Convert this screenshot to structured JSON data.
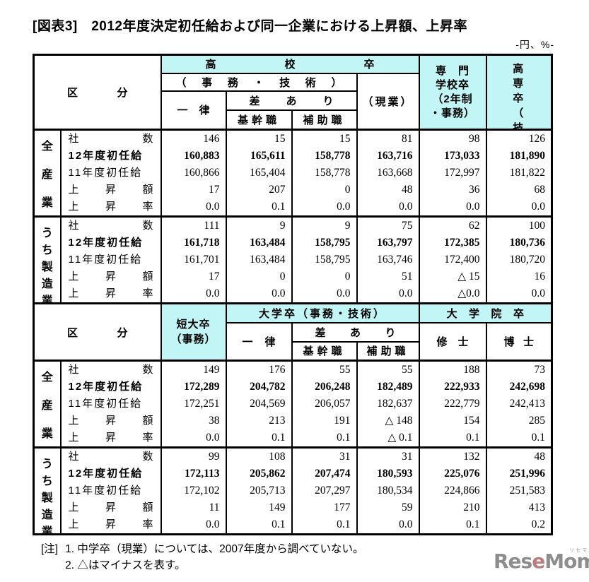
{
  "title": "[図表3]　2012年度決定初任給および同一企業における上昇額、上昇率",
  "unit_note": "-円、%-",
  "colors": {
    "header_bg": "#c2f5f5",
    "logo_gray": "#8d8d8d",
    "logo_accent": "#bb7a7c"
  },
  "header1": {
    "kubun": "区分",
    "koko": "高校卒",
    "jimu_gijutsu": "（事務・技術）",
    "ichiritsu": "一律",
    "sa_ari": "差あり",
    "kikan": "基幹職",
    "hojo": "補助職",
    "gengyo": "（現業）",
    "senmon_line1": "専　門",
    "senmon_line2": "学校卒",
    "senmon_line3": "（2年制",
    "senmon_line4": "・事務）",
    "kosen_top": "高専卒",
    "kosen_bottom": "（技術）"
  },
  "header2": {
    "kubun": "区分",
    "tandai_line1": "短大卒",
    "tandai_line2": "（事務）",
    "daigaku": "大学卒（事務・技術）",
    "ichiritsu": "一律",
    "sa_ari": "差あり",
    "kikan": "基幹職",
    "hojo": "補助職",
    "daigakuin": "大学院卒",
    "shushi": "修士",
    "hakushi": "博士"
  },
  "row_labels": [
    "社数",
    "12年度初任給",
    "11年度初任給",
    "上昇額",
    "上昇率"
  ],
  "blocks": [
    {
      "group": "全産業",
      "cols": [
        [
          "146",
          "160,883",
          "160,866",
          "17",
          "0.0"
        ],
        [
          "15",
          "165,611",
          "165,404",
          "207",
          "0.1"
        ],
        [
          "15",
          "158,778",
          "158,778",
          "0",
          "0.0"
        ],
        [
          "81",
          "163,716",
          "163,668",
          "48",
          "0.0"
        ],
        [
          "98",
          "173,033",
          "172,997",
          "36",
          "0.0"
        ],
        [
          "126",
          "181,890",
          "181,822",
          "68",
          "0.0"
        ]
      ]
    },
    {
      "group": "うち製造業",
      "cols": [
        [
          "111",
          "161,718",
          "161,701",
          "17",
          "0.0"
        ],
        [
          "9",
          "163,484",
          "163,484",
          "0",
          "0.0"
        ],
        [
          "9",
          "158,795",
          "158,795",
          "0",
          "0.0"
        ],
        [
          "75",
          "163,797",
          "163,746",
          "51",
          "0.0"
        ],
        [
          "62",
          "172,385",
          "172,400",
          "△ 15",
          "△0.0"
        ],
        [
          "100",
          "180,736",
          "180,720",
          "16",
          "0.0"
        ]
      ]
    },
    {
      "group": "全産業",
      "cols": [
        [
          "149",
          "172,289",
          "172,251",
          "38",
          "0.0"
        ],
        [
          "176",
          "204,782",
          "204,569",
          "213",
          "0.1"
        ],
        [
          "55",
          "206,248",
          "206,057",
          "191",
          "0.1"
        ],
        [
          "55",
          "182,489",
          "182,637",
          "△ 148",
          "△ 0.1"
        ],
        [
          "188",
          "222,933",
          "222,779",
          "154",
          "0.1"
        ],
        [
          "73",
          "242,698",
          "242,413",
          "285",
          "0.1"
        ]
      ]
    },
    {
      "group": "うち製造業",
      "cols": [
        [
          "99",
          "172,113",
          "172,102",
          "11",
          "0.0"
        ],
        [
          "108",
          "205,862",
          "205,713",
          "149",
          "0.1"
        ],
        [
          "31",
          "207,474",
          "207,297",
          "177",
          "0.1"
        ],
        [
          "31",
          "180,593",
          "180,534",
          "59",
          "0.0"
        ],
        [
          "132",
          "225,076",
          "224,866",
          "210",
          "0.1"
        ],
        [
          "48",
          "251,996",
          "251,583",
          "413",
          "0.2"
        ]
      ]
    }
  ],
  "notes": {
    "tag": "[注]",
    "line1": "1. 中学卒（現業）については、2007年度から調べていない。",
    "line2": "2. △はマイナスを表す。"
  },
  "logo": {
    "pre": "Res",
    "accent": "e",
    "post": "Mom",
    "suffix": ".",
    "kana": "リセマム"
  }
}
